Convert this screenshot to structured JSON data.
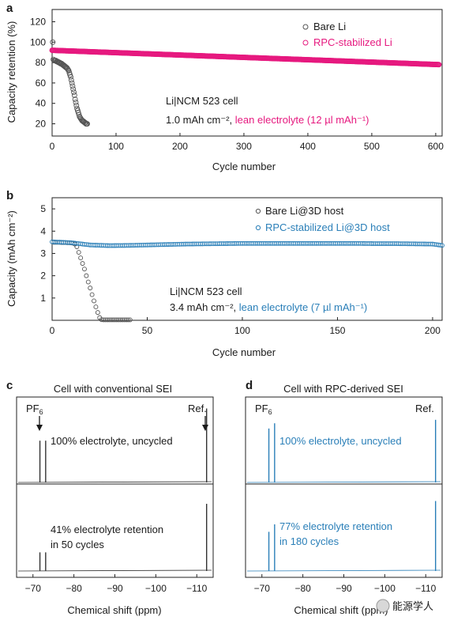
{
  "panels": {
    "a": {
      "letter": "a"
    },
    "b": {
      "letter": "b"
    },
    "c": {
      "letter": "c",
      "title": "Cell with conventional SEI"
    },
    "d": {
      "letter": "d",
      "title": "Cell with RPC-derived SEI"
    }
  },
  "colors": {
    "bare": "#555555",
    "rpc_a": "#e6197f",
    "rpc_b": "#2a7fb8",
    "nmr_c": "#333333",
    "nmr_d": "#2a7fb8",
    "text": "#1a1a1a"
  },
  "watermark": "能源学人",
  "chart_data": [
    {
      "id": "a",
      "type": "scatter",
      "xlabel": "Cycle number",
      "ylabel": "Capacity retention (%)",
      "xlim": [
        0,
        610
      ],
      "ylim": [
        8,
        132
      ],
      "xticks": [
        "0",
        "100",
        "200",
        "300",
        "400",
        "500",
        "600"
      ],
      "yticks": [
        "20",
        "40",
        "60",
        "80",
        "100",
        "120"
      ],
      "annotation": {
        "line1": "Li|NCM 523 cell",
        "line2_black": "1.0 mAh cm⁻², ",
        "line2_colored": "lean electrolyte (12 µl mAh⁻¹)"
      },
      "legend": {
        "placement": "top-right"
      },
      "series": [
        {
          "name": "Bare Li",
          "color": "#555555",
          "points": [
            [
              1,
              100
            ],
            [
              2,
              83
            ],
            [
              3,
              82
            ],
            [
              4,
              82
            ],
            [
              5,
              82
            ],
            [
              6,
              82
            ],
            [
              7,
              81
            ],
            [
              8,
              81
            ],
            [
              9,
              81
            ],
            [
              10,
              80
            ],
            [
              11,
              80
            ],
            [
              12,
              80
            ],
            [
              13,
              79
            ],
            [
              14,
              79
            ],
            [
              15,
              79
            ],
            [
              16,
              78
            ],
            [
              17,
              78
            ],
            [
              18,
              77
            ],
            [
              19,
              77
            ],
            [
              20,
              76
            ],
            [
              21,
              76
            ],
            [
              22,
              75
            ],
            [
              23,
              75
            ],
            [
              24,
              74
            ],
            [
              25,
              73
            ],
            [
              26,
              72
            ],
            [
              27,
              70
            ],
            [
              28,
              68
            ],
            [
              29,
              66
            ],
            [
              30,
              63
            ],
            [
              31,
              60
            ],
            [
              32,
              57
            ],
            [
              33,
              54
            ],
            [
              34,
              51
            ],
            [
              35,
              48
            ],
            [
              36,
              44
            ],
            [
              37,
              41
            ],
            [
              38,
              38
            ],
            [
              39,
              35
            ],
            [
              40,
              33
            ],
            [
              41,
              31
            ],
            [
              42,
              29
            ],
            [
              43,
              27
            ],
            [
              44,
              26
            ],
            [
              45,
              25
            ],
            [
              46,
              24
            ],
            [
              47,
              23
            ],
            [
              48,
              23
            ],
            [
              49,
              22
            ],
            [
              50,
              22
            ],
            [
              51,
              21
            ],
            [
              52,
              21
            ],
            [
              53,
              20
            ],
            [
              54,
              20
            ],
            [
              55,
              20
            ]
          ]
        },
        {
          "name": "RPC-stabilized Li",
          "color": "#e6197f",
          "start": [
            0,
            92
          ],
          "end": [
            605,
            78
          ],
          "count": 605
        }
      ]
    },
    {
      "id": "b",
      "type": "scatter",
      "xlabel": "Cycle number",
      "ylabel": "Capacity (mAh cm⁻²)",
      "xlim": [
        0,
        205
      ],
      "ylim": [
        0,
        5.5
      ],
      "xticks": [
        "0",
        "50",
        "100",
        "150",
        "200"
      ],
      "yticks": [
        "1",
        "2",
        "3",
        "4",
        "5"
      ],
      "annotation": {
        "line1": "Li|NCM 523 cell",
        "line2_black": "3.4 mAh cm⁻², ",
        "line2_colored": "lean electrolyte (7 µl mAh⁻¹)"
      },
      "legend": {
        "placement": "top-right"
      },
      "series": [
        {
          "name": "Bare Li@3D host",
          "color": "#555555",
          "points": [
            [
              1,
              3.5
            ],
            [
              2,
              3.5
            ],
            [
              3,
              3.5
            ],
            [
              4,
              3.5
            ],
            [
              5,
              3.49
            ],
            [
              6,
              3.49
            ],
            [
              7,
              3.49
            ],
            [
              8,
              3.48
            ],
            [
              9,
              3.48
            ],
            [
              10,
              3.47
            ],
            [
              11,
              3.46
            ],
            [
              12,
              3.42
            ],
            [
              13,
              3.3
            ],
            [
              14,
              3.05
            ],
            [
              15,
              2.8
            ],
            [
              16,
              2.55
            ],
            [
              17,
              2.3
            ],
            [
              18,
              2.0
            ],
            [
              19,
              1.72
            ],
            [
              20,
              1.45
            ],
            [
              21,
              1.15
            ],
            [
              22,
              0.87
            ],
            [
              23,
              0.6
            ],
            [
              24,
              0.35
            ],
            [
              25,
              0.12
            ],
            [
              26,
              0.03
            ],
            [
              27,
              0.02
            ],
            [
              28,
              0.02
            ],
            [
              29,
              0.02
            ],
            [
              30,
              0.02
            ],
            [
              31,
              0.02
            ],
            [
              32,
              0.02
            ],
            [
              33,
              0.02
            ],
            [
              34,
              0.02
            ],
            [
              35,
              0.02
            ],
            [
              36,
              0.02
            ],
            [
              37,
              0.02
            ],
            [
              38,
              0.02
            ],
            [
              39,
              0.02
            ],
            [
              40,
              0.02
            ],
            [
              41,
              0.02
            ]
          ]
        },
        {
          "name": "RPC-stabilized Li@3D host",
          "color": "#2a7fb8",
          "points": [
            [
              0,
              3.52
            ],
            [
              10,
              3.48
            ],
            [
              20,
              3.38
            ],
            [
              30,
              3.35
            ],
            [
              40,
              3.36
            ],
            [
              50,
              3.38
            ],
            [
              60,
              3.4
            ],
            [
              70,
              3.42
            ],
            [
              80,
              3.43
            ],
            [
              90,
              3.44
            ],
            [
              100,
              3.45
            ],
            [
              110,
              3.45
            ],
            [
              120,
              3.45
            ],
            [
              130,
              3.45
            ],
            [
              140,
              3.45
            ],
            [
              150,
              3.45
            ],
            [
              160,
              3.45
            ],
            [
              170,
              3.44
            ],
            [
              180,
              3.44
            ],
            [
              190,
              3.43
            ],
            [
              200,
              3.42
            ],
            [
              205,
              3.36
            ]
          ]
        }
      ]
    },
    {
      "id": "c",
      "type": "line",
      "title": "Cell with conventional SEI",
      "xlabel": "Chemical shift (ppm)",
      "xlim": [
        -66,
        -114
      ],
      "xticks": [
        "−70",
        "−80",
        "−90",
        "−100",
        "−110"
      ],
      "peak_labels": {
        "pf6": "PF",
        "pf6_sub": "6",
        "ref": "Ref."
      },
      "traces": [
        {
          "label_line1": "100% electrolyte, uncycled",
          "label_line2": "",
          "peaks": [
            [
              -71.7,
              0.48
            ],
            [
              -73.1,
              0.48
            ],
            [
              -112.4,
              0.85
            ]
          ]
        },
        {
          "label_line1": "41% electrolyte retention",
          "label_line2": "in 50 cycles",
          "peaks": [
            [
              -71.7,
              0.2
            ],
            [
              -73.1,
              0.2
            ],
            [
              -112.4,
              0.72
            ]
          ]
        }
      ]
    },
    {
      "id": "d",
      "type": "line",
      "title": "Cell with RPC-derived SEI",
      "xlabel": "Chemical shift (ppm)",
      "xlim": [
        -66,
        -114
      ],
      "xticks": [
        "−70",
        "−80",
        "−90",
        "−100",
        "−110"
      ],
      "peak_labels": {
        "pf6": "PF",
        "pf6_sub": "6",
        "ref": "Ref."
      },
      "traces": [
        {
          "label_line1": "100% electrolyte, uncycled",
          "label_line2": "",
          "peaks": [
            [
              -71.7,
              0.62
            ],
            [
              -73.1,
              0.68
            ],
            [
              -112.4,
              0.72
            ]
          ]
        },
        {
          "label_line1": "77% electrolyte retention",
          "label_line2": "in 180 cycles",
          "peaks": [
            [
              -71.7,
              0.42
            ],
            [
              -73.1,
              0.5
            ],
            [
              -112.4,
              0.75
            ]
          ]
        }
      ]
    }
  ]
}
